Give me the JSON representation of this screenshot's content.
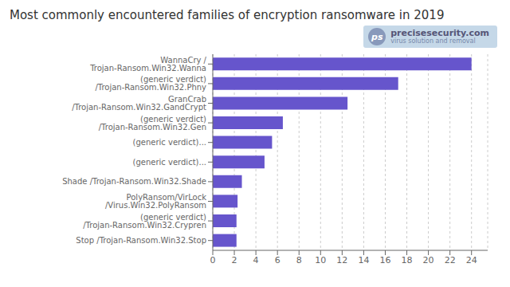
{
  "chart_data": {
    "type": "bar",
    "title": "Most commonly encountered families of encryption ransomware in 2019",
    "orientation": "horizontal",
    "categories": [
      "Stop /Trojan-Ransom.Win32.Stop",
      "(generic verdict) /Trojan-Ransom.Win32.Crypren",
      "PolyRansom/VirLock /Virus.Win32.PolyRansom",
      "Shade /Trojan-Ransom.Win32.Shade",
      "(generic verdict)...",
      "(generic verdict)...",
      "(generic verdict) /Trojan-Ransom.Win32.Gen",
      "GranCrab /Trojan-Ransom.Win32.GandCrypt",
      "(generic verdict) /Trojan-Ransom.Win32.Phny",
      "WannaCry / Trojan-Ransom.Win32.Wanna"
    ],
    "values": [
      2.2,
      2.2,
      2.3,
      2.7,
      4.8,
      5.5,
      6.5,
      12.5,
      17.2,
      24.0
    ],
    "color": "#6655cc",
    "xlim": [
      0,
      25.5
    ],
    "xticks": [
      0,
      2,
      4,
      6,
      8,
      10,
      12,
      14,
      16,
      18,
      20,
      22,
      24
    ],
    "grid": true,
    "annotations": [
      "ps",
      "precisesecurity.com",
      "virus solution and removal"
    ]
  }
}
